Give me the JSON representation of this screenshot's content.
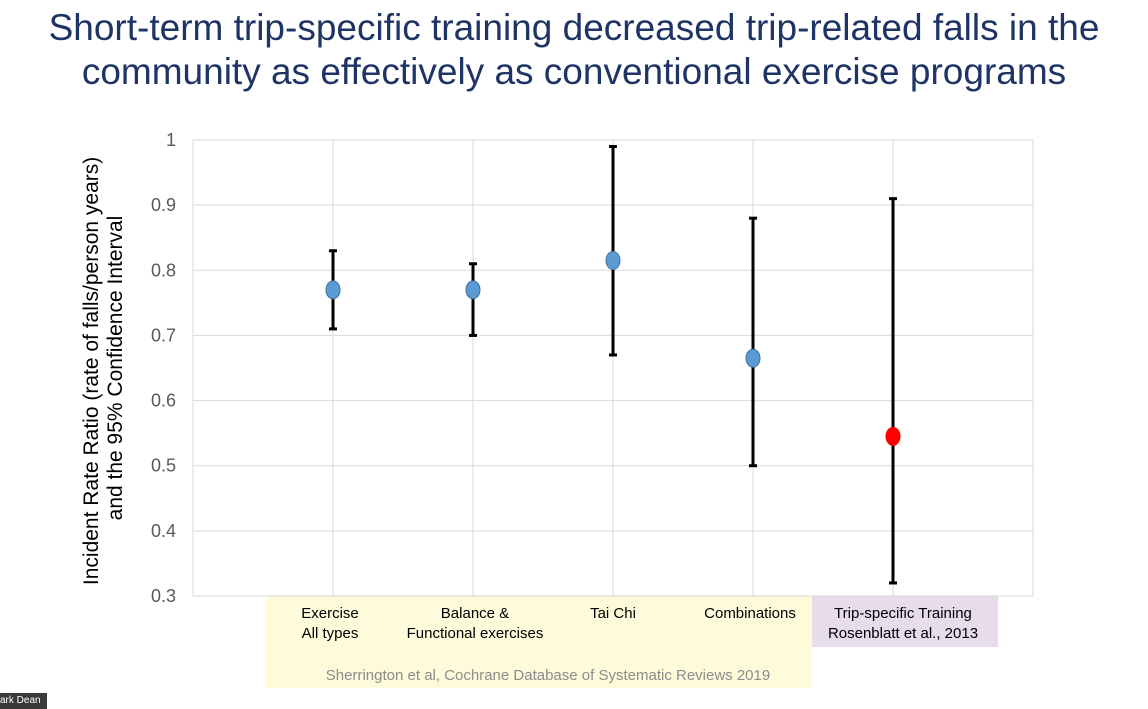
{
  "title": [
    "Short-term trip-specific training decreased trip-related falls in the",
    "community as effectively as conventional exercise programs"
  ],
  "presenter_tag": "ark Dean",
  "colors": {
    "title": "#1f3466",
    "marker_default": "#5b9bd5",
    "marker_highlight": "#ff0000",
    "band_standard": "#fdfbd9",
    "band_highlight": "#e6dcec",
    "gridline": "#d9d9d9",
    "error_bar": "#000000"
  },
  "chart_data": {
    "type": "scatter",
    "subtype": "point-estimate-with-95%-CI",
    "title": "",
    "ylabel": [
      "Incident Rate Ratio (rate of falls/person years)",
      "and the 95% Confidence Interval"
    ],
    "ylim": [
      0.3,
      1.0
    ],
    "yticks": [
      0.3,
      0.4,
      0.5,
      0.6,
      0.7,
      0.8,
      0.9,
      1
    ],
    "ytick_labels": [
      "0.3",
      "0.4",
      "0.5",
      "0.6",
      "0.7",
      "0.8",
      "0.9",
      "1"
    ],
    "grid": true,
    "categories": [
      {
        "lines": [
          "Exercise",
          "All types"
        ],
        "estimate": 0.77,
        "ci_low": 0.71,
        "ci_high": 0.83,
        "highlight": false
      },
      {
        "lines": [
          "Balance &",
          "Functional exercises"
        ],
        "estimate": 0.77,
        "ci_low": 0.7,
        "ci_high": 0.81,
        "highlight": false
      },
      {
        "lines": [
          "Tai Chi"
        ],
        "estimate": 0.815,
        "ci_low": 0.67,
        "ci_high": 0.99,
        "highlight": false
      },
      {
        "lines": [
          "Combinations"
        ],
        "estimate": 0.665,
        "ci_low": 0.5,
        "ci_high": 0.88,
        "highlight": false
      },
      {
        "lines": [
          "Trip-specific Training",
          "Rosenblatt et al., 2013"
        ],
        "estimate": 0.545,
        "ci_low": 0.32,
        "ci_high": 0.91,
        "highlight": true
      }
    ],
    "source_note": "Sherrington et al, Cochrane Database of Systematic Reviews 2019"
  }
}
